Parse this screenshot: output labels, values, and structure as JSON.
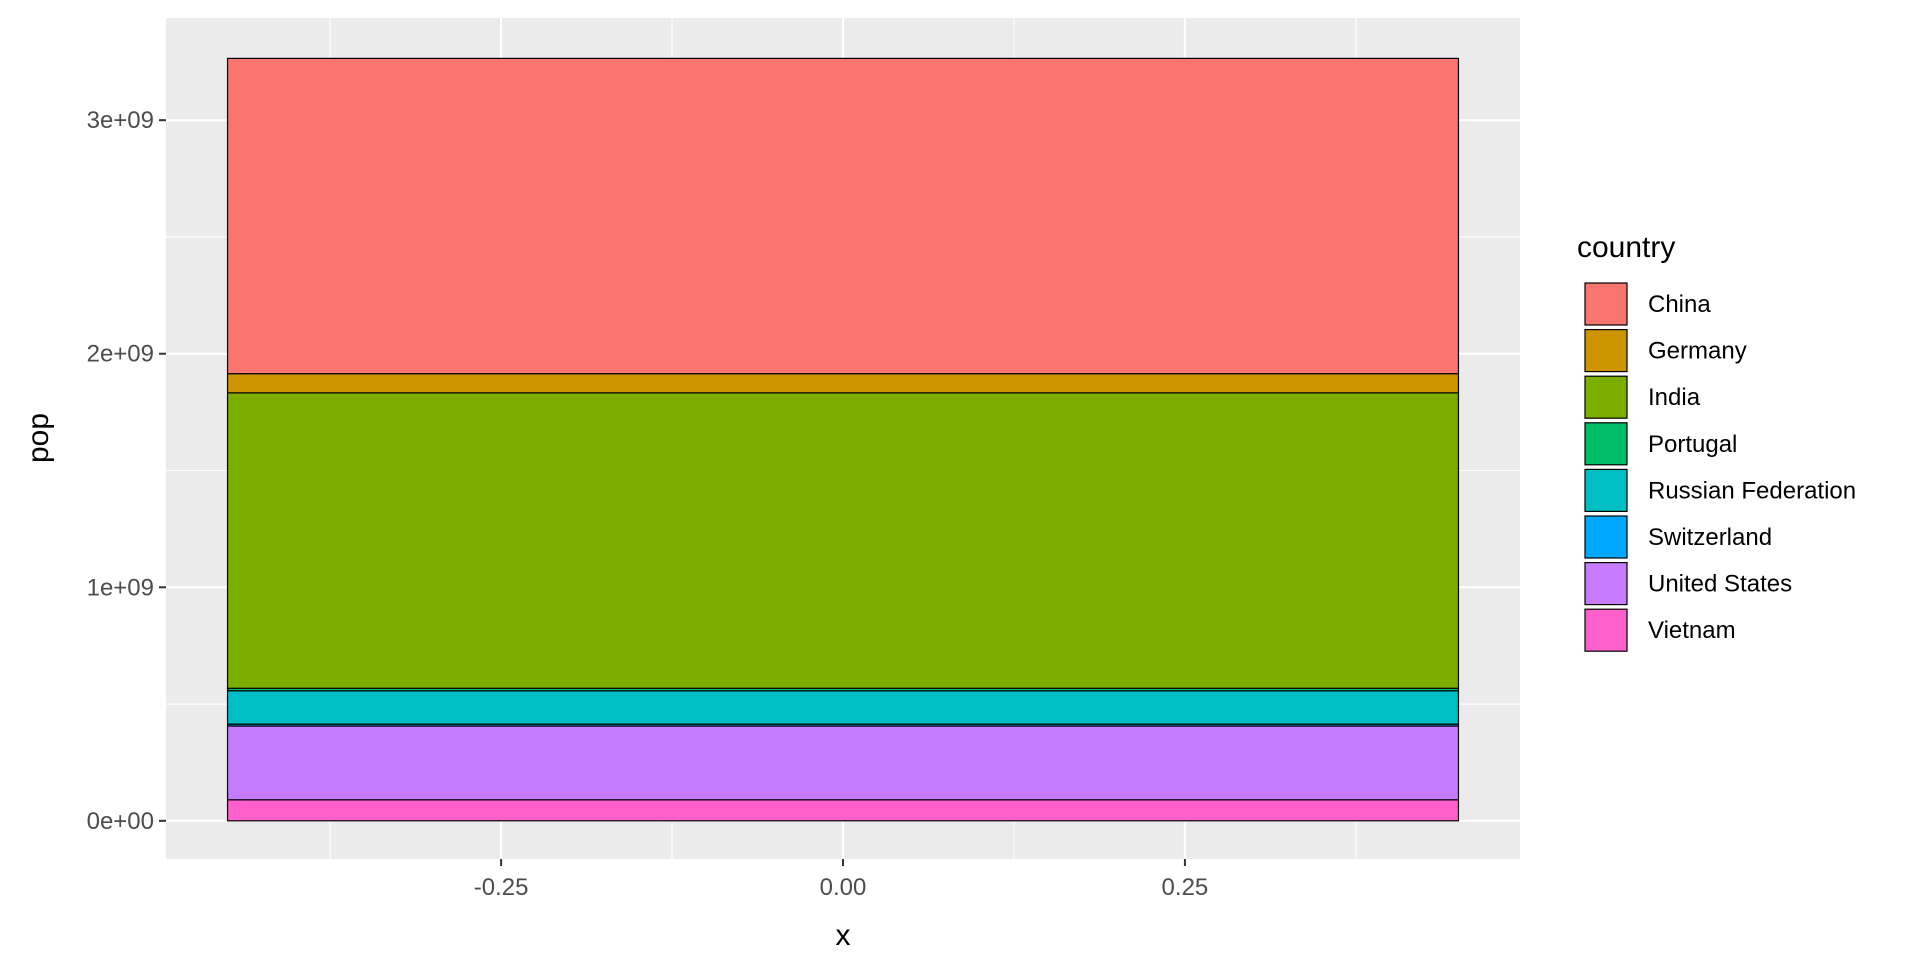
{
  "chart_data": {
    "type": "bar",
    "stacked": true,
    "xlabel": "x",
    "ylabel": "pop",
    "xlim": [
      -0.495,
      0.495
    ],
    "ylim": [
      -163500000,
      3437500000
    ],
    "x_ticks": [
      -0.25,
      0.0,
      0.25
    ],
    "x_tick_labels": [
      "-0.25",
      "0.00",
      "0.25"
    ],
    "x_minor_ticks": [
      -0.375,
      -0.125,
      0.125,
      0.375
    ],
    "y_ticks": [
      0,
      1000000000,
      2000000000,
      3000000000
    ],
    "y_tick_labels": [
      "0e+00",
      "1e+09",
      "2e+09",
      "3e+09"
    ],
    "y_minor_ticks": [
      500000000,
      1500000000,
      2500000000
    ],
    "bar_x_range": [
      -0.45,
      0.45
    ],
    "grid": true,
    "background": "#ebebeb",
    "legend": {
      "title": "country",
      "position": "right"
    },
    "series": [
      {
        "name": "China",
        "color": "#F8766D",
        "value": 1350000000
      },
      {
        "name": "Germany",
        "color": "#CD9600",
        "value": 82000000
      },
      {
        "name": "India",
        "color": "#7CAE00",
        "value": 1265000000
      },
      {
        "name": "Portugal",
        "color": "#00BE67",
        "value": 10500000
      },
      {
        "name": "Russian Federation",
        "color": "#00BFC4",
        "value": 143000000
      },
      {
        "name": "Switzerland",
        "color": "#00A9FF",
        "value": 8000000
      },
      {
        "name": "United States",
        "color": "#C77CFF",
        "value": 316000000
      },
      {
        "name": "Vietnam",
        "color": "#FF61CC",
        "value": 90000000
      }
    ]
  }
}
